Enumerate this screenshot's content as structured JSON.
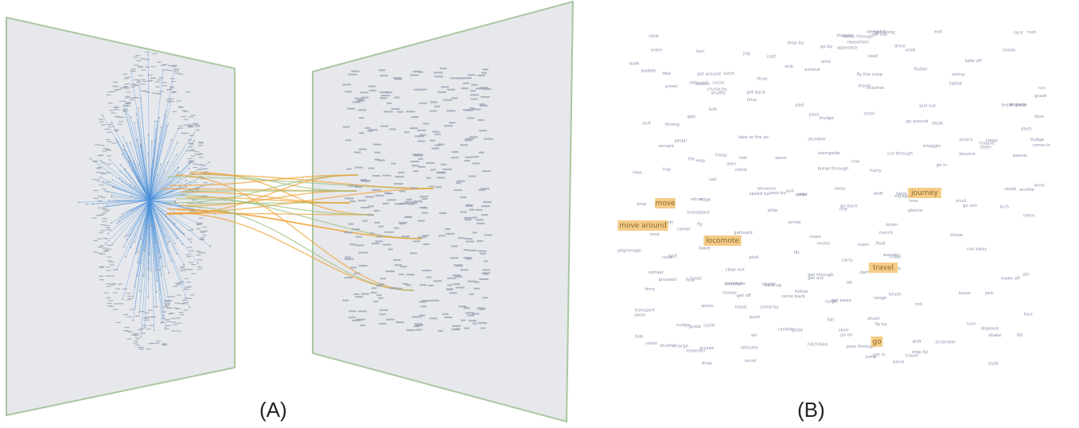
{
  "figure": {
    "panel_a": {
      "caption": "(A)",
      "description_colors": {
        "plane_fill": "#e6e8ec",
        "plane_border": "#a9c7a0",
        "tree_edges": "#4a90d9",
        "link_orange": "#f0a030",
        "link_green": "#9cc080",
        "node_gray": "#9aa0b0"
      }
    },
    "panel_b": {
      "caption": "(B)",
      "highlighted_words": [
        "move",
        "move around",
        "locomote",
        "journey",
        "travel",
        "go"
      ],
      "highlight_color": "#f3c77a",
      "word_color": "#8a90a8",
      "words": [
        "drive",
        "swing",
        "extend",
        "travel",
        "roam",
        "cruise",
        "wander",
        "drift",
        "shift",
        "crawl",
        "stroll",
        "flow",
        "glide",
        "slide",
        "march",
        "ride",
        "sail",
        "fly",
        "hover",
        "float",
        "walk",
        "run",
        "sprint",
        "jog",
        "hike",
        "trek",
        "rush",
        "hurry",
        "dash",
        "race",
        "pass",
        "cross",
        "enter",
        "exit",
        "leave",
        "arrive",
        "return",
        "advance",
        "proceed",
        "retreat",
        "climb",
        "descend",
        "rise",
        "fall",
        "drop",
        "sink",
        "dive",
        "jump",
        "leap",
        "hop",
        "roll",
        "spin",
        "turn",
        "twist",
        "bend",
        "lean",
        "stir",
        "shake",
        "wave",
        "sway",
        "push",
        "pull",
        "drag",
        "carry",
        "lift",
        "raise",
        "lower",
        "toss",
        "throw",
        "cast",
        "follow",
        "lead",
        "guide",
        "steer",
        "head",
        "approach",
        "circle",
        "orbit",
        "wind",
        "weave",
        "get around",
        "go around",
        "come back",
        "go back",
        "get back",
        "back up",
        "set out",
        "take off",
        "get off",
        "go on",
        "pass through",
        "move through",
        "break through",
        "cut through",
        "get through",
        "get in",
        "go in",
        "come in",
        "go out",
        "get out",
        "sweep",
        "scuttle",
        "scurry",
        "scramble",
        "stagger",
        "stumble",
        "limp",
        "shuffle",
        "trudge",
        "plod",
        "zip",
        "zoom",
        "whiz",
        "bolt",
        "dart",
        "flit",
        "flutter",
        "bob",
        "jerk",
        "lurch",
        "tour",
        "voyage",
        "commute",
        "migrate",
        "transfer",
        "transport",
        "shuttle",
        "ferry",
        "hitchhike",
        "pilgrimage",
        "swim",
        "paddle",
        "row",
        "skate",
        "ski",
        "surf",
        "cycle",
        "pedal",
        "motor",
        "taxi",
        "sneak",
        "creep",
        "slink",
        "tiptoe",
        "prowl",
        "stalk",
        "lurk",
        "skulk",
        "pad",
        "tread",
        "bounce",
        "rebound",
        "recoil",
        "ricochet",
        "glance",
        "graze",
        "skim",
        "brush",
        "scrape",
        "scud",
        "escape",
        "flee",
        "fly the coop",
        "take to the air",
        "get away",
        "break away",
        "run away",
        "make off",
        "clear out",
        "pull out",
        "displace",
        "relocate",
        "reposition",
        "transplant",
        "shunt",
        "budge",
        "nudge",
        "edge",
        "inch",
        "worm",
        "meander",
        "ramble",
        "stray",
        "straggle",
        "rove",
        "range",
        "gad",
        "gallivant",
        "traipse",
        "mosey",
        "career",
        "charge",
        "stampede",
        "storm",
        "surge",
        "swarm",
        "teem",
        "throng",
        "troop",
        "file",
        "coast",
        "taxi along",
        "cruise by",
        "speed by",
        "fly by",
        "pass by",
        "go by",
        "come by",
        "drop by",
        "stop by"
      ]
    }
  }
}
